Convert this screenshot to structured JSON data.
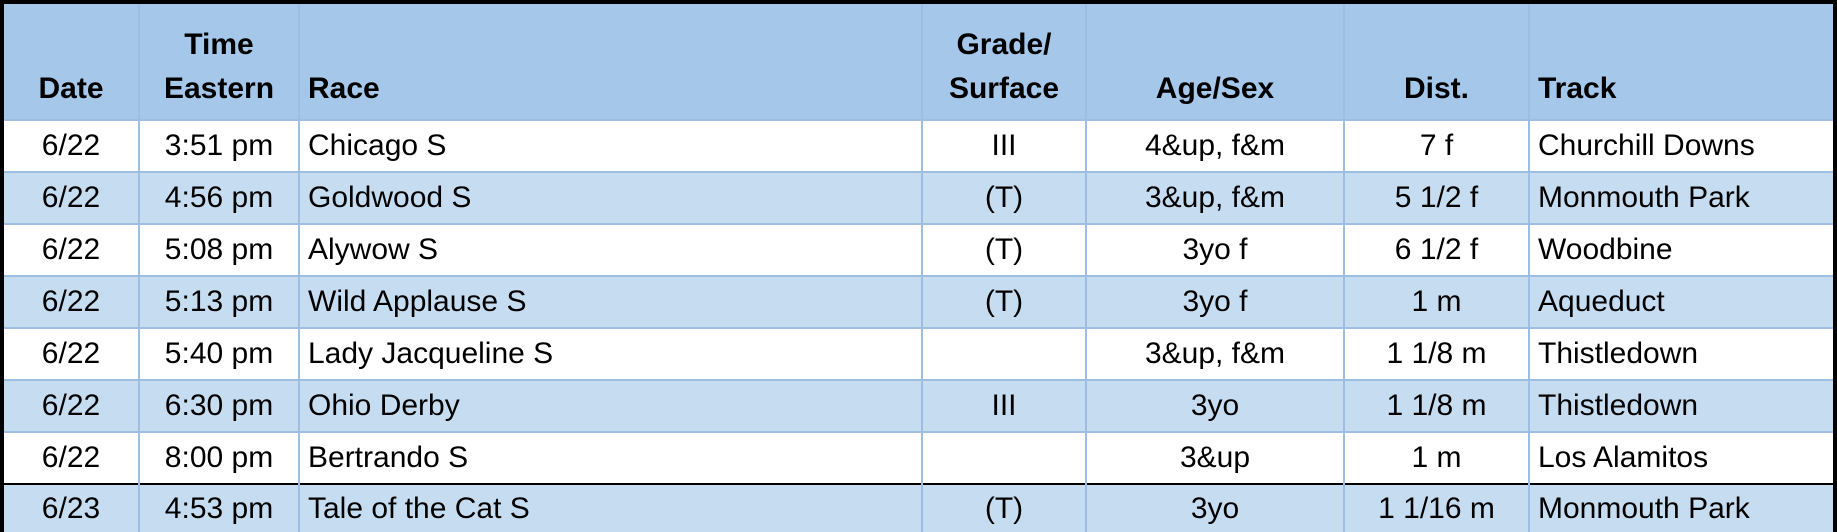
{
  "table": {
    "header": [
      [
        "Date"
      ],
      [
        "Time",
        "Eastern"
      ],
      [
        "Race"
      ],
      [
        "Grade/",
        "Surface"
      ],
      [
        "Age/Sex"
      ],
      [
        "Dist."
      ],
      [
        "Track"
      ]
    ],
    "rows": [
      [
        "6/22",
        "3:51 pm",
        "Chicago S",
        "III",
        "4&up, f&m",
        "7 f",
        "Churchill Downs"
      ],
      [
        "6/22",
        "4:56 pm",
        "Goldwood S",
        "(T)",
        "3&up, f&m",
        "5 1/2 f",
        "Monmouth Park"
      ],
      [
        "6/22",
        "5:08 pm",
        "Alywow S",
        "(T)",
        "3yo f",
        "6 1/2 f",
        "Woodbine"
      ],
      [
        "6/22",
        "5:13 pm",
        "Wild Applause S",
        "(T)",
        "3yo f",
        "1 m",
        "Aqueduct"
      ],
      [
        "6/22",
        "5:40 pm",
        "Lady Jacqueline S",
        null,
        "3&up, f&m",
        "1 1/8 m",
        "Thistledown"
      ],
      [
        "6/22",
        "6:30 pm",
        "Ohio Derby",
        "III",
        "3yo",
        "1 1/8 m",
        "Thistledown"
      ],
      [
        "6/22",
        "8:00 pm",
        "Bertrando S",
        null,
        "3&up",
        "1 m",
        "Los Alamitos"
      ],
      [
        "6/23",
        "4:53 pm",
        "Tale of the Cat S",
        "(T)",
        "3yo",
        "1 1/16 m",
        "Monmouth Park"
      ]
    ]
  }
}
